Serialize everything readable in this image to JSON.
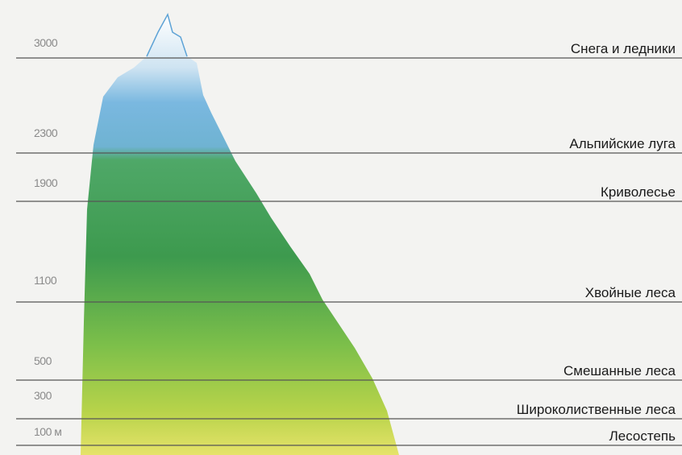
{
  "levels": [
    {
      "elevation": "3000",
      "zone": "Снега и ледники"
    },
    {
      "elevation": "2300",
      "zone": "Альпийские луга"
    },
    {
      "elevation": "1900",
      "zone": "Криволесье"
    },
    {
      "elevation": "1100",
      "zone": "Хвойные леса"
    },
    {
      "elevation": "500",
      "zone": "Смешанные леса"
    },
    {
      "elevation": "300",
      "zone": "Широколиственные леса"
    },
    {
      "elevation": "100 м",
      "zone": "Лесостепь"
    }
  ]
}
